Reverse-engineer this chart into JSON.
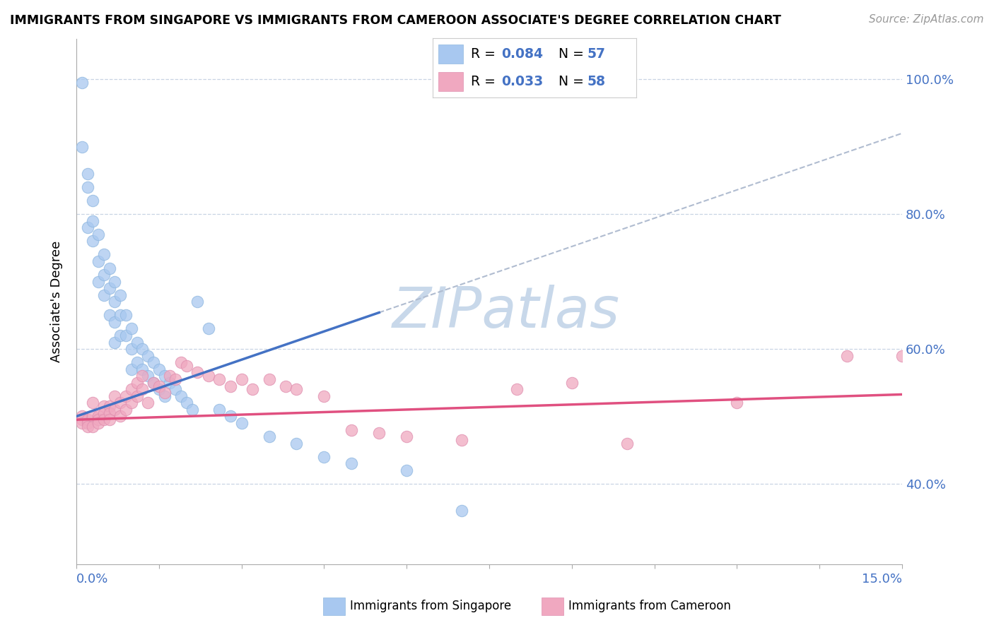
{
  "title": "IMMIGRANTS FROM SINGAPORE VS IMMIGRANTS FROM CAMEROON ASSOCIATE'S DEGREE CORRELATION CHART",
  "source": "Source: ZipAtlas.com",
  "ylabel": "Associate's Degree",
  "ytick_vals": [
    0.4,
    0.6,
    0.8,
    1.0
  ],
  "xmin": 0.0,
  "xmax": 0.15,
  "ymin": 0.28,
  "ymax": 1.06,
  "r_singapore": 0.084,
  "n_singapore": 57,
  "r_cameroon": 0.033,
  "n_cameroon": 58,
  "color_singapore": "#a8c8f0",
  "color_cameroon": "#f0a8c0",
  "color_sg_edge": "#90b8e0",
  "color_cm_edge": "#e090b0",
  "line_singapore": "#4472c4",
  "line_cameroon": "#e05080",
  "line_dashed": "#b0bcd0",
  "watermark_color": "#c8d8ea",
  "sg_x": [
    0.001,
    0.001,
    0.002,
    0.002,
    0.002,
    0.003,
    0.003,
    0.003,
    0.004,
    0.004,
    0.004,
    0.005,
    0.005,
    0.005,
    0.006,
    0.006,
    0.006,
    0.007,
    0.007,
    0.007,
    0.007,
    0.008,
    0.008,
    0.008,
    0.009,
    0.009,
    0.01,
    0.01,
    0.01,
    0.011,
    0.011,
    0.012,
    0.012,
    0.013,
    0.013,
    0.014,
    0.014,
    0.015,
    0.015,
    0.016,
    0.016,
    0.017,
    0.018,
    0.019,
    0.02,
    0.021,
    0.022,
    0.024,
    0.026,
    0.028,
    0.03,
    0.035,
    0.04,
    0.045,
    0.05,
    0.06,
    0.07
  ],
  "sg_y": [
    0.995,
    0.9,
    0.86,
    0.84,
    0.78,
    0.82,
    0.79,
    0.76,
    0.77,
    0.73,
    0.7,
    0.74,
    0.71,
    0.68,
    0.72,
    0.69,
    0.65,
    0.7,
    0.67,
    0.64,
    0.61,
    0.68,
    0.65,
    0.62,
    0.65,
    0.62,
    0.63,
    0.6,
    0.57,
    0.61,
    0.58,
    0.6,
    0.57,
    0.59,
    0.56,
    0.58,
    0.55,
    0.57,
    0.54,
    0.56,
    0.53,
    0.55,
    0.54,
    0.53,
    0.52,
    0.51,
    0.67,
    0.63,
    0.51,
    0.5,
    0.49,
    0.47,
    0.46,
    0.44,
    0.43,
    0.42,
    0.36
  ],
  "cm_x": [
    0.001,
    0.001,
    0.001,
    0.002,
    0.002,
    0.002,
    0.003,
    0.003,
    0.003,
    0.004,
    0.004,
    0.004,
    0.005,
    0.005,
    0.005,
    0.006,
    0.006,
    0.006,
    0.007,
    0.007,
    0.008,
    0.008,
    0.009,
    0.009,
    0.01,
    0.01,
    0.011,
    0.011,
    0.012,
    0.012,
    0.013,
    0.014,
    0.015,
    0.016,
    0.017,
    0.018,
    0.019,
    0.02,
    0.022,
    0.024,
    0.026,
    0.028,
    0.03,
    0.032,
    0.035,
    0.038,
    0.04,
    0.045,
    0.05,
    0.055,
    0.06,
    0.07,
    0.08,
    0.09,
    0.1,
    0.12,
    0.14,
    0.15
  ],
  "cm_y": [
    0.5,
    0.495,
    0.49,
    0.495,
    0.49,
    0.485,
    0.52,
    0.5,
    0.485,
    0.5,
    0.495,
    0.49,
    0.515,
    0.505,
    0.495,
    0.515,
    0.505,
    0.495,
    0.53,
    0.51,
    0.52,
    0.5,
    0.53,
    0.51,
    0.54,
    0.52,
    0.55,
    0.53,
    0.56,
    0.54,
    0.52,
    0.55,
    0.545,
    0.535,
    0.56,
    0.555,
    0.58,
    0.575,
    0.565,
    0.56,
    0.555,
    0.545,
    0.555,
    0.54,
    0.555,
    0.545,
    0.54,
    0.53,
    0.48,
    0.475,
    0.47,
    0.465,
    0.54,
    0.55,
    0.46,
    0.52,
    0.59,
    0.59
  ]
}
